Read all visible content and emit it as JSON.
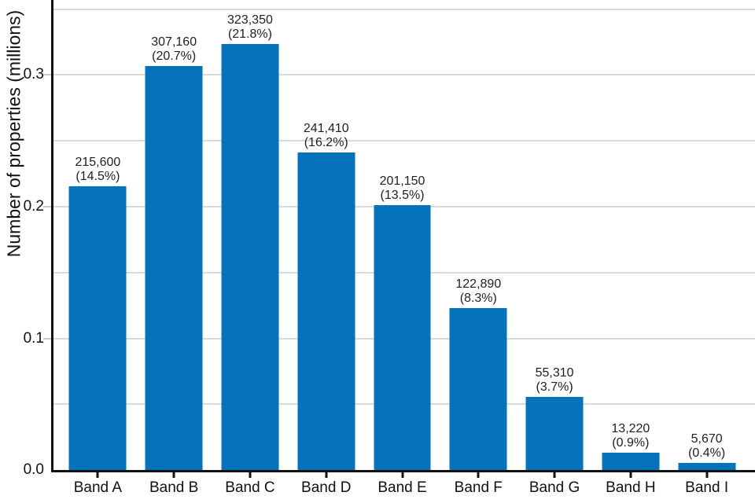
{
  "chart_data": {
    "type": "bar",
    "title": "",
    "xlabel": "",
    "ylabel": "Number of properties (millions)",
    "categories": [
      "Band A",
      "Band B",
      "Band C",
      "Band D",
      "Band E",
      "Band F",
      "Band G",
      "Band H",
      "Band I"
    ],
    "values_millions": [
      0.2156,
      0.30716,
      0.32335,
      0.24141,
      0.20115,
      0.12289,
      0.05531,
      0.01322,
      0.00567
    ],
    "counts": [
      "215,600",
      "307,160",
      "323,350",
      "241,410",
      "201,150",
      "122,890",
      "55,310",
      "13,220",
      "5,670"
    ],
    "percentages": [
      "(14.5%)",
      "(20.7%)",
      "(21.8%)",
      "(16.2%)",
      "(13.5%)",
      "(8.3%)",
      "(3.7%)",
      "(0.9%)",
      "(0.4%)"
    ],
    "ylim": [
      0,
      0.357
    ],
    "yticks": [
      {
        "v": 0.0,
        "label": "0.0"
      },
      {
        "v": 0.1,
        "label": "0.1"
      },
      {
        "v": 0.2,
        "label": "0.2"
      },
      {
        "v": 0.3,
        "label": "0.3"
      }
    ],
    "gridlines": [
      0.05,
      0.1,
      0.15,
      0.2,
      0.25,
      0.3,
      0.35
    ],
    "grid": true,
    "legend_position": "none",
    "colors": {
      "bar": "#0473bb",
      "grid": "#dadada",
      "tick": "#c9c9c9",
      "spine": "#111111",
      "text": "#111111"
    }
  }
}
